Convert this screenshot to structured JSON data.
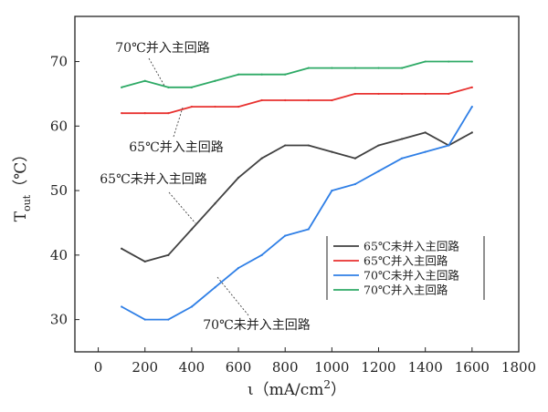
{
  "chart_data": {
    "type": "line",
    "title": "",
    "xlabel": "ι（mA/cm²）",
    "xlabel_parts": {
      "main": "ι（mA/cm",
      "sup": "2",
      "close": "）"
    },
    "ylabel": "T_out（℃）",
    "ylabel_parts": {
      "main": "T",
      "sub": "out",
      "unit": "（℃）"
    },
    "xlim": [
      -100,
      1800
    ],
    "ylim": [
      25,
      77
    ],
    "x_ticks": [
      0,
      200,
      400,
      600,
      800,
      1000,
      1200,
      1400,
      1600,
      1800
    ],
    "y_ticks": [
      30,
      40,
      50,
      60,
      70
    ],
    "legend_position": "bottom-right",
    "series": [
      {
        "name": "65℃未并入主回路",
        "color": "#404040",
        "x": [
          100,
          200,
          300,
          400,
          500,
          600,
          700,
          800,
          900,
          1000,
          1100,
          1200,
          1300,
          1400,
          1500,
          1600
        ],
        "y": [
          41,
          39,
          40,
          44,
          48,
          52,
          55,
          57,
          57,
          56,
          55,
          57,
          58,
          59,
          57,
          59
        ]
      },
      {
        "name": "65℃并入主回路",
        "color": "#e8312f",
        "x": [
          100,
          200,
          300,
          400,
          500,
          600,
          700,
          800,
          900,
          1000,
          1100,
          1200,
          1300,
          1400,
          1500,
          1600
        ],
        "y": [
          62,
          62,
          62,
          63,
          63,
          63,
          64,
          64,
          64,
          64,
          65,
          65,
          65,
          65,
          65,
          66
        ]
      },
      {
        "name": "70℃未并入主回路",
        "color": "#2f7fe6",
        "x": [
          100,
          200,
          300,
          400,
          500,
          600,
          700,
          800,
          900,
          1000,
          1100,
          1200,
          1300,
          1400,
          1500,
          1600
        ],
        "y": [
          32,
          30,
          30,
          32,
          35,
          38,
          40,
          43,
          44,
          50,
          51,
          53,
          55,
          56,
          57,
          63
        ]
      },
      {
        "name": "70℃并入主回路",
        "color": "#2eaa66",
        "x": [
          100,
          200,
          300,
          400,
          500,
          600,
          700,
          800,
          900,
          1000,
          1100,
          1200,
          1300,
          1400,
          1500,
          1600
        ],
        "y": [
          66,
          67,
          66,
          66,
          67,
          68,
          68,
          68,
          69,
          69,
          69,
          69,
          69,
          70,
          70,
          70
        ]
      }
    ],
    "annotations": [
      {
        "text": "70℃并入主回路",
        "series": 3,
        "point_x": 300
      },
      {
        "text": "65℃并入主回路",
        "series": 1,
        "point_x": 400
      },
      {
        "text": "65℃未并入主回路",
        "series": 0,
        "point_x": 450
      },
      {
        "text": "70℃未并入主回路",
        "series": 2,
        "point_x": 500
      }
    ]
  }
}
